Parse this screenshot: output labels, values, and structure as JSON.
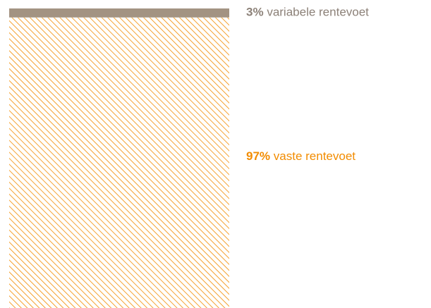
{
  "chart_data": {
    "type": "bar",
    "stacked": true,
    "categories": [
      null
    ],
    "series": [
      {
        "name": "vaste rentevoet",
        "color": "#f28c00",
        "pattern": "hatch",
        "values": [
          97
        ],
        "value_labels": [
          "97%"
        ]
      },
      {
        "name": "variabele rentevoet",
        "color": "#a39382",
        "label_color": "#8c8178",
        "values": [
          3
        ],
        "value_labels": [
          "3%"
        ]
      }
    ]
  }
}
